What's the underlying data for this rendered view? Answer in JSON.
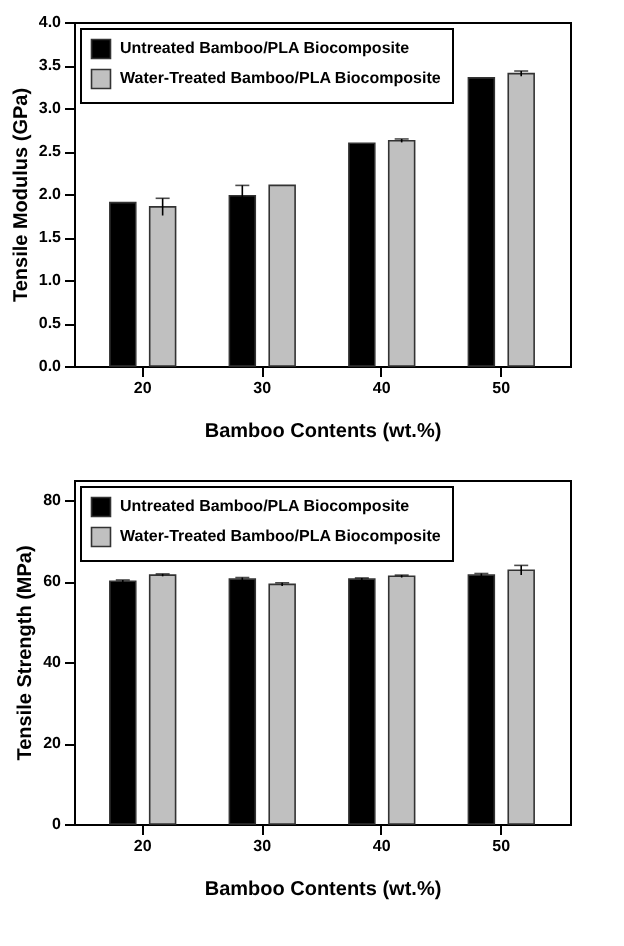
{
  "chart_data": [
    {
      "type": "bar",
      "xlabel": "Bamboo Contents (wt.%)",
      "ylabel": "Tensile Modulus (GPa)",
      "categories": [
        "20",
        "30",
        "40",
        "50"
      ],
      "series": [
        {
          "name": "Untreated Bamboo/PLA Biocomposite",
          "color": "#000000",
          "values": [
            1.9,
            1.98,
            2.59,
            3.35
          ],
          "errors": [
            null,
            0.12,
            null,
            null
          ]
        },
        {
          "name": "Water-Treated Bamboo/PLA Biocomposite",
          "color": "#c0c0c0",
          "values": [
            1.85,
            2.1,
            2.62,
            3.4
          ],
          "errors": [
            0.1,
            null,
            0.02,
            0.03
          ]
        }
      ],
      "ylim": [
        0,
        4
      ],
      "yticks": [
        {
          "value": 0,
          "label": "0.0"
        },
        0.5,
        {
          "value": 1,
          "label": "1.0"
        },
        1.5,
        {
          "value": 2,
          "label": "2.0"
        },
        2.5,
        {
          "value": 3,
          "label": "3.0"
        },
        3.5,
        {
          "value": 4,
          "label": "4.0"
        }
      ],
      "grid": false,
      "legend": "top left"
    },
    {
      "type": "bar",
      "xlabel": "Bamboo Contents (wt.%)",
      "ylabel": "Tensile Strength (MPa)",
      "categories": [
        "20",
        "30",
        "40",
        "50"
      ],
      "series": [
        {
          "name": "Untreated Bamboo/PLA Biocomposite",
          "color": "#000000",
          "values": [
            60,
            60.5,
            60.5,
            61.5
          ],
          "errors": [
            0.3,
            0.4,
            0.3,
            0.4
          ]
        },
        {
          "name": "Water-Treated Bamboo/PLA Biocomposite",
          "color": "#c0c0c0",
          "values": [
            61.5,
            59.2,
            61.2,
            62.7
          ],
          "errors": [
            0.3,
            0.4,
            0.3,
            1.2
          ]
        }
      ],
      "ylim": [
        0,
        85
      ],
      "yticks": [
        0,
        20,
        40,
        60,
        80
      ],
      "grid": false,
      "legend": "top left"
    }
  ]
}
